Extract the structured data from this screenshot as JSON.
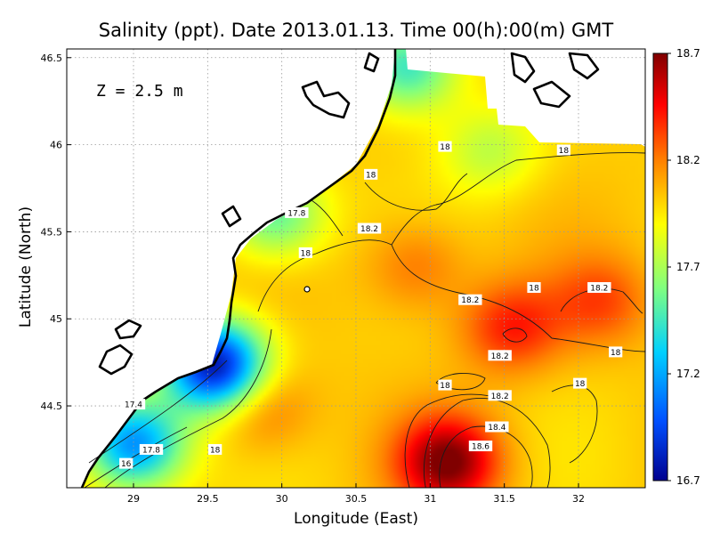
{
  "chart_data": {
    "type": "heatmap",
    "title": "Salinity (ppt). Date 2013.01.13. Time 00(h):00(m) GMT",
    "xlabel": "Longitude (East)",
    "ylabel": "Latitude (North)",
    "annotation": "Z = 2.5 m",
    "xlim": [
      28.55,
      32.45
    ],
    "ylim": [
      44.03,
      46.55
    ],
    "x_ticks": [
      29,
      29.5,
      30,
      30.5,
      31,
      31.5,
      32
    ],
    "x_tick_labels": [
      "29",
      "29.5",
      "30",
      "30.5",
      "31",
      "31.5",
      "32"
    ],
    "y_ticks": [
      44.5,
      45,
      45.5,
      46,
      46.5
    ],
    "y_tick_labels": [
      "44.5",
      "45",
      "45.5",
      "46",
      "46.5"
    ],
    "grid": true,
    "colorbar": {
      "range": [
        16.7,
        18.7
      ],
      "tick_values": [
        16.7,
        17.2,
        17.7,
        18.2,
        18.7
      ],
      "tick_labels": [
        "16.7",
        "17.2",
        "17.7",
        "18.2",
        "18.7"
      ],
      "colors": [
        "#00008f",
        "#0050ff",
        "#00d0ff",
        "#80ff80",
        "#ffff00",
        "#ff8000",
        "#ff0000",
        "#800000"
      ]
    },
    "contour_labels": [
      {
        "text": "16",
        "lon": 28.95,
        "lat": 44.17
      },
      {
        "text": "17.4",
        "lon": 29.0,
        "lat": 44.51
      },
      {
        "text": "17.8",
        "lon": 29.12,
        "lat": 44.25
      },
      {
        "text": "18",
        "lon": 29.55,
        "lat": 44.25
      },
      {
        "text": "17.8",
        "lon": 30.1,
        "lat": 45.61
      },
      {
        "text": "18",
        "lon": 30.16,
        "lat": 45.38
      },
      {
        "text": "18.2",
        "lon": 30.59,
        "lat": 45.52
      },
      {
        "text": "18",
        "lon": 30.6,
        "lat": 45.83
      },
      {
        "text": "18",
        "lon": 31.1,
        "lat": 45.99
      },
      {
        "text": "18",
        "lon": 31.9,
        "lat": 45.97
      },
      {
        "text": "18",
        "lon": 31.7,
        "lat": 45.18
      },
      {
        "text": "18.2",
        "lon": 32.14,
        "lat": 45.18
      },
      {
        "text": "18.2",
        "lon": 31.27,
        "lat": 45.11
      },
      {
        "text": "18.2",
        "lon": 31.47,
        "lat": 44.79
      },
      {
        "text": "18",
        "lon": 32.25,
        "lat": 44.81
      },
      {
        "text": "18",
        "lon": 31.1,
        "lat": 44.62
      },
      {
        "text": "18",
        "lon": 32.01,
        "lat": 44.63
      },
      {
        "text": "18.2",
        "lon": 31.47,
        "lat": 44.56
      },
      {
        "text": "18.4",
        "lon": 31.45,
        "lat": 44.38
      },
      {
        "text": "18.6",
        "lon": 31.34,
        "lat": 44.27
      }
    ],
    "salinity_features": [
      {
        "lon": 31.12,
        "lat": 44.18,
        "value": 18.7
      },
      {
        "lon": 31.55,
        "lat": 44.95,
        "value": 18.4
      },
      {
        "lon": 32.15,
        "lat": 45.1,
        "value": 18.3
      },
      {
        "lon": 30.9,
        "lat": 45.3,
        "value": 18.25
      },
      {
        "lon": 29.85,
        "lat": 44.5,
        "value": 18.3
      },
      {
        "lon": 29.55,
        "lat": 44.73,
        "value": 16.75
      },
      {
        "lon": 29.0,
        "lat": 44.28,
        "value": 17.1
      },
      {
        "lon": 29.95,
        "lat": 45.6,
        "value": 17.5
      },
      {
        "lon": 30.85,
        "lat": 46.45,
        "value": 17.4
      },
      {
        "lon": 31.4,
        "lat": 45.97,
        "value": 17.75
      }
    ]
  }
}
